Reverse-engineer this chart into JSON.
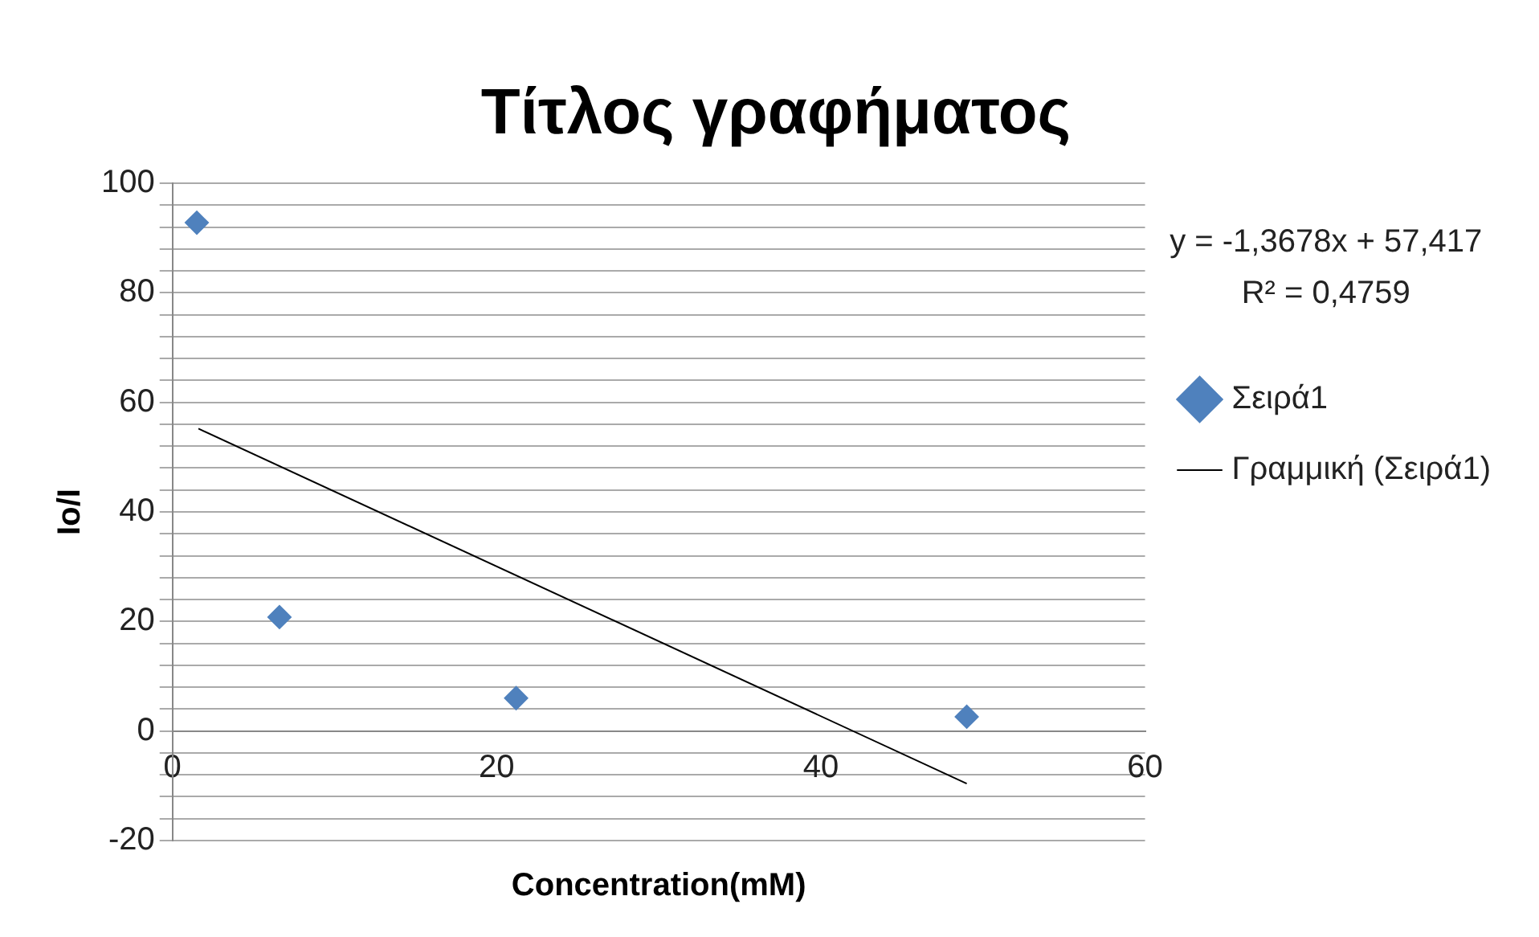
{
  "chart_data": {
    "type": "scatter",
    "title": "Τίτλος γραφήματος",
    "xlabel": "Concentration(mM)",
    "ylabel": "Io/I",
    "annotations": [
      "y = -1,3678x + 57,417",
      "R² = 0,4759"
    ],
    "series": [
      {
        "name": "Σειρά1",
        "color": "#4f81bd",
        "marker": "diamond",
        "x": [
          1.5,
          6.6,
          21.2,
          49.0
        ],
        "values": [
          92.8,
          20.8,
          6.0,
          2.6
        ]
      },
      {
        "name": "Γραμμική (Σειρά1)",
        "type": "line",
        "color": "#000000",
        "marker": "none",
        "line_style": "solid",
        "x": [
          1.6,
          49.0
        ],
        "values": [
          55.2,
          -9.6
        ]
      }
    ],
    "xlim": [
      0,
      60
    ],
    "xticks": [
      0,
      20,
      40,
      60
    ],
    "ylim": [
      -20,
      100
    ],
    "yticks": [
      -20,
      {
        "value": -16,
        "label": null
      },
      {
        "value": -12,
        "label": null
      },
      {
        "value": -8,
        "label": null
      },
      {
        "value": -4,
        "label": null
      },
      0,
      {
        "value": 4,
        "label": null
      },
      {
        "value": 8,
        "label": null
      },
      {
        "value": 12,
        "label": null
      },
      {
        "value": 16,
        "label": null
      },
      20,
      {
        "value": 24,
        "label": null
      },
      {
        "value": 28,
        "label": null
      },
      {
        "value": 32,
        "label": null
      },
      {
        "value": 36,
        "label": null
      },
      40,
      {
        "value": 44,
        "label": null
      },
      {
        "value": 48,
        "label": null
      },
      {
        "value": 52,
        "label": null
      },
      {
        "value": 56,
        "label": null
      },
      60,
      {
        "value": 64,
        "label": null
      },
      {
        "value": 68,
        "label": null
      },
      {
        "value": 72,
        "label": null
      },
      {
        "value": 76,
        "label": null
      },
      80,
      {
        "value": 84,
        "label": null
      },
      {
        "value": 88,
        "label": null
      },
      {
        "value": 92,
        "label": null
      },
      {
        "value": 96,
        "label": null
      },
      100
    ],
    "grid": "y",
    "legend": "right"
  }
}
